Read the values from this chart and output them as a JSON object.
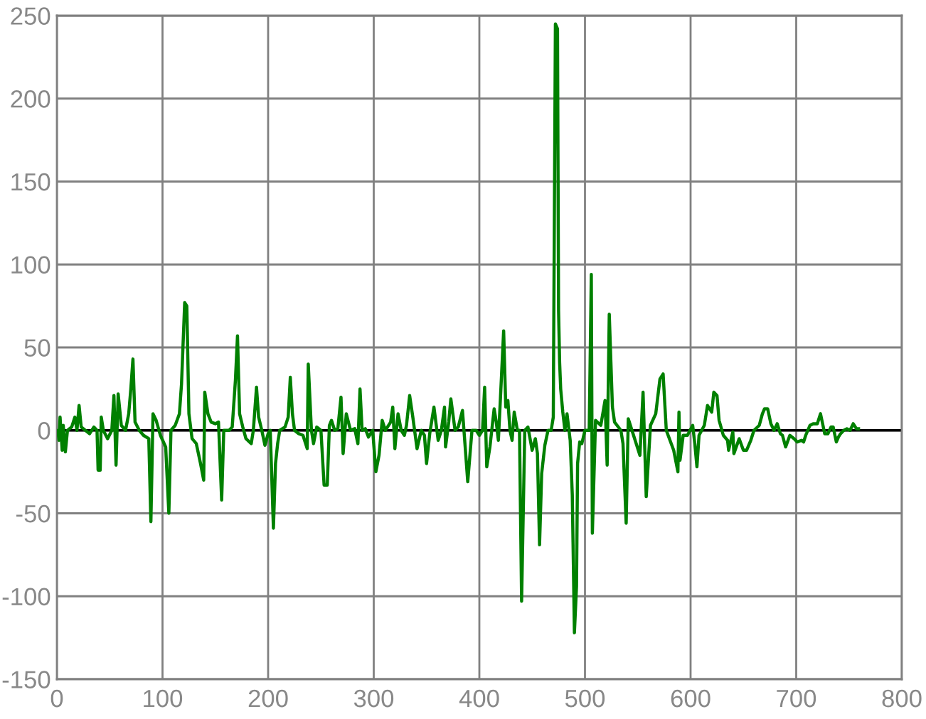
{
  "chart_data": {
    "type": "line",
    "xlim": [
      0,
      800
    ],
    "ylim": [
      -150,
      250
    ],
    "xticks": [
      0,
      100,
      200,
      300,
      400,
      500,
      600,
      700,
      800
    ],
    "yticks": [
      -150,
      -100,
      -50,
      0,
      50,
      100,
      150,
      200,
      250
    ],
    "grid": true,
    "ref_lines": [
      {
        "axis": "y",
        "value": 0,
        "color": "#000000"
      }
    ],
    "series": [
      {
        "color": "#008000",
        "x": [
          1,
          2,
          3,
          5,
          6,
          8,
          10,
          14,
          17,
          19,
          21,
          23,
          27,
          31,
          35,
          38,
          39,
          41,
          42,
          44,
          48,
          52,
          54,
          56,
          58,
          61,
          65,
          68,
          70,
          72,
          74,
          78,
          82,
          87,
          89,
          91,
          94,
          98,
          103,
          106,
          108,
          112,
          116,
          118,
          121,
          123,
          125,
          128,
          132,
          136,
          139,
          140,
          143,
          146,
          150,
          153,
          156,
          158,
          163,
          166,
          169,
          171,
          173,
          176,
          179,
          184,
          186,
          189,
          191,
          194,
          197,
          200,
          202,
          205,
          207,
          209,
          211,
          216,
          219,
          221,
          223,
          225,
          229,
          233,
          237,
          238,
          241,
          243,
          246,
          250,
          253,
          256,
          258,
          260,
          263,
          266,
          269,
          271,
          274,
          278,
          282,
          285,
          287,
          289,
          292,
          295,
          299,
          302,
          305,
          308,
          311,
          316,
          318,
          320,
          323,
          326,
          329,
          331,
          334,
          337,
          341,
          345,
          348,
          350,
          353,
          357,
          361,
          364,
          367,
          368,
          371,
          373,
          377,
          380,
          384,
          386,
          389,
          393,
          397,
          400,
          403,
          405,
          407,
          410,
          414,
          416,
          418,
          420,
          423,
          425,
          427,
          429,
          431,
          433,
          436,
          438,
          440,
          443,
          446,
          448,
          450,
          453,
          455,
          457,
          459,
          462,
          465,
          468,
          470,
          472,
          474,
          475,
          476,
          477,
          479,
          481,
          483,
          486,
          488,
          490,
          492,
          493,
          495,
          497,
          500,
          504,
          506,
          507,
          510,
          515,
          519,
          521,
          523,
          526,
          528,
          534,
          536,
          539,
          541,
          546,
          548,
          552,
          555,
          558,
          562,
          567,
          571,
          574,
          577,
          584,
          588,
          589,
          590,
          593,
          597,
          602,
          604,
          606,
          608,
          613,
          616,
          620,
          622,
          625,
          627,
          631,
          635,
          636,
          640,
          641,
          646,
          650,
          653,
          657,
          660,
          665,
          668,
          670,
          673,
          676,
          679,
          682,
          685,
          687,
          690,
          694,
          698,
          701,
          705,
          707,
          709,
          713,
          716,
          720,
          723,
          725,
          727,
          730,
          733,
          735,
          738,
          740,
          742,
          745,
          748,
          751,
          754,
          757,
          759
        ],
        "values": [
          0,
          -6,
          8,
          -12,
          3,
          -13,
          0,
          2,
          8,
          0,
          15,
          2,
          0,
          -2,
          2,
          0,
          -24,
          -24,
          8,
          0,
          -5,
          0,
          21,
          -21,
          22,
          3,
          0,
          10,
          25,
          43,
          5,
          0,
          -3,
          -5,
          -55,
          10,
          6,
          -3,
          -10,
          -50,
          0,
          3,
          10,
          28,
          77,
          75,
          10,
          -5,
          -8,
          -20,
          -30,
          23,
          10,
          5,
          4,
          5,
          -42,
          0,
          0,
          2,
          30,
          57,
          10,
          2,
          -5,
          -8,
          0,
          26,
          8,
          0,
          -9,
          -2,
          0,
          -59,
          -20,
          -8,
          0,
          2,
          8,
          32,
          10,
          0,
          -2,
          -3,
          -11,
          40,
          0,
          -8,
          2,
          0,
          -33,
          -33,
          3,
          6,
          0,
          1,
          20,
          -14,
          10,
          0,
          1,
          -8,
          25,
          0,
          1,
          -4,
          0,
          -25,
          -15,
          6,
          0,
          5,
          14,
          -11,
          10,
          0,
          -3,
          3,
          21,
          8,
          -11,
          0,
          -3,
          -20,
          -2,
          14,
          -6,
          0,
          14,
          -10,
          5,
          19,
          0,
          2,
          12,
          -5,
          -31,
          0,
          0,
          -3,
          0,
          26,
          -22,
          -10,
          13,
          5,
          -6,
          20,
          60,
          14,
          18,
          0,
          -6,
          11,
          0,
          0,
          -103,
          0,
          2,
          -5,
          -12,
          -5,
          -14,
          -69,
          -26,
          -9,
          0,
          0,
          8,
          245,
          242,
          72,
          41,
          25,
          11,
          0,
          10,
          -6,
          -39,
          -122,
          -94,
          -20,
          -7,
          -8,
          0,
          0,
          94,
          -62,
          6,
          3,
          18,
          -21,
          70,
          14,
          5,
          0,
          -8,
          -56,
          7,
          -3,
          -7,
          -15,
          23,
          -40,
          3,
          10,
          31,
          34,
          0,
          -12,
          -25,
          11,
          -18,
          -3,
          -3,
          3,
          -8,
          -22,
          -3,
          3,
          15,
          11,
          23,
          21,
          6,
          -3,
          -6,
          -12,
          -1,
          -14,
          -5,
          -12,
          -12,
          -6,
          0,
          3,
          10,
          13,
          13,
          4,
          0,
          4,
          -2,
          -3,
          -10,
          -3,
          -5,
          -7,
          -6,
          -7,
          -3,
          3,
          4,
          4,
          10,
          4,
          -2,
          -2,
          2,
          2,
          -7,
          -4,
          -2,
          0,
          1,
          0,
          4,
          1,
          1
        ]
      }
    ]
  }
}
